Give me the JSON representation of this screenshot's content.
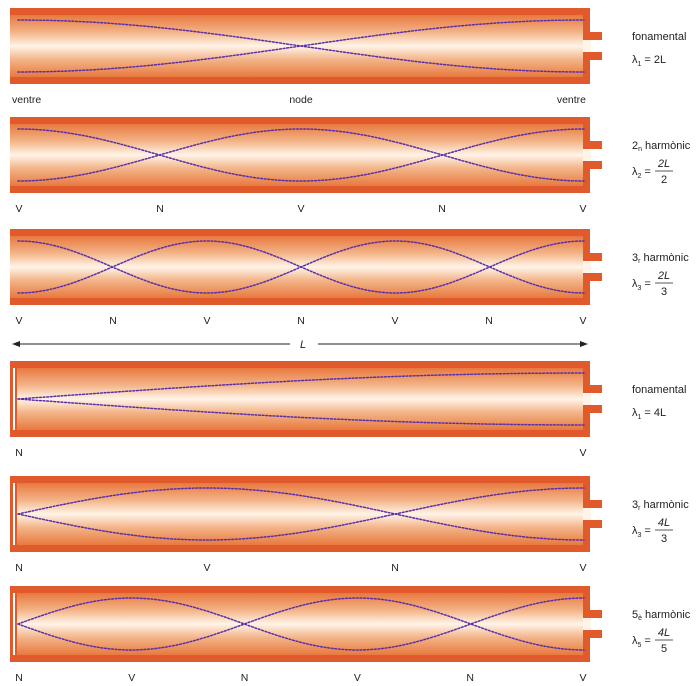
{
  "colors": {
    "tube_wall": "#e05a2b",
    "tube_inner_edge": "#e8793f",
    "tube_center": "#fff4e8",
    "wave": "#5a2fa6",
    "text": "#222222"
  },
  "tubes": [
    {
      "type": "open",
      "harmonic": 1,
      "side_label": {
        "prefix": "",
        "sup": "",
        "word": "fonamental"
      },
      "formula": {
        "lambda_sub": "1",
        "text": "= 2L",
        "frac": null
      },
      "node_labels": [
        "ventre",
        "node",
        "ventre"
      ]
    },
    {
      "type": "open",
      "harmonic": 2,
      "side_label": {
        "prefix": "2",
        "sup": "n",
        "word": "harmònic"
      },
      "formula": {
        "lambda_sub": "2",
        "text": "=",
        "frac": {
          "num": "2L",
          "den": "2"
        }
      },
      "node_labels": [
        "V",
        "N",
        "V",
        "N",
        "V"
      ]
    },
    {
      "type": "open",
      "harmonic": 3,
      "side_label": {
        "prefix": "3",
        "sup": "r",
        "word": "harmònic"
      },
      "formula": {
        "lambda_sub": "3",
        "text": "=",
        "frac": {
          "num": "2L",
          "den": "3"
        }
      },
      "node_labels": [
        "V",
        "N",
        "V",
        "N",
        "V",
        "N",
        "V"
      ]
    },
    {
      "type": "closed",
      "harmonic": 1,
      "side_label": {
        "prefix": "",
        "sup": "",
        "word": "fonamental"
      },
      "formula": {
        "lambda_sub": "1",
        "text": "= 4L",
        "frac": null
      },
      "node_labels": [
        "N",
        "V"
      ]
    },
    {
      "type": "closed",
      "harmonic": 3,
      "side_label": {
        "prefix": "3",
        "sup": "r",
        "word": "harmònic"
      },
      "formula": {
        "lambda_sub": "3",
        "text": "=",
        "frac": {
          "num": "4L",
          "den": "3"
        }
      },
      "node_labels": [
        "N",
        "V",
        "N",
        "V"
      ]
    },
    {
      "type": "closed",
      "harmonic": 5,
      "side_label": {
        "prefix": "5",
        "sup": "è",
        "word": "harmònic"
      },
      "formula": {
        "lambda_sub": "5",
        "text": "=",
        "frac": {
          "num": "4L",
          "den": "5"
        }
      },
      "node_labels": [
        "N",
        "V",
        "N",
        "V",
        "N",
        "V"
      ]
    }
  ],
  "length_marker": {
    "label": "L"
  }
}
